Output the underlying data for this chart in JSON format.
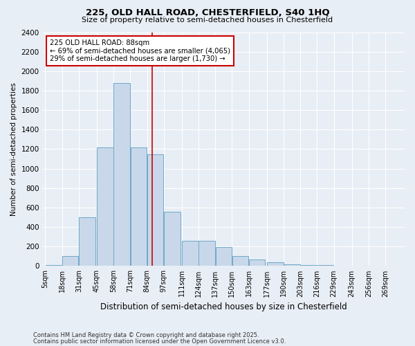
{
  "title1": "225, OLD HALL ROAD, CHESTERFIELD, S40 1HQ",
  "title2": "Size of property relative to semi-detached houses in Chesterfield",
  "xlabel": "Distribution of semi-detached houses by size in Chesterfield",
  "ylabel": "Number of semi-detached properties",
  "annotation_title": "225 OLD HALL ROAD: 88sqm",
  "annotation_line1": "← 69% of semi-detached houses are smaller (4,065)",
  "annotation_line2": "29% of semi-detached houses are larger (1,730) →",
  "footnote1": "Contains HM Land Registry data © Crown copyright and database right 2025.",
  "footnote2": "Contains public sector information licensed under the Open Government Licence v3.0.",
  "property_size": 88,
  "bar_color": "#c8d8ea",
  "bar_edge_color": "#6fa8c8",
  "vline_color": "#cc0000",
  "vline_x": 88,
  "categories": [
    "5sqm",
    "18sqm",
    "31sqm",
    "45sqm",
    "58sqm",
    "71sqm",
    "84sqm",
    "97sqm",
    "111sqm",
    "124sqm",
    "137sqm",
    "150sqm",
    "163sqm",
    "177sqm",
    "190sqm",
    "203sqm",
    "216sqm",
    "229sqm",
    "243sqm",
    "256sqm",
    "269sqm"
  ],
  "bin_starts": [
    5,
    18,
    31,
    45,
    58,
    71,
    84,
    97,
    111,
    124,
    137,
    150,
    163,
    177,
    190,
    203,
    216,
    229,
    243,
    256,
    269
  ],
  "bin_width": 13,
  "values": [
    10,
    100,
    500,
    1220,
    1880,
    1220,
    1150,
    560,
    260,
    260,
    195,
    100,
    65,
    40,
    20,
    12,
    8,
    5,
    5,
    5,
    5
  ],
  "ylim": [
    0,
    2400
  ],
  "yticks": [
    0,
    200,
    400,
    600,
    800,
    1000,
    1200,
    1400,
    1600,
    1800,
    2000,
    2200,
    2400
  ],
  "background_color": "#e8eef5",
  "grid_color": "#ffffff",
  "annotation_box_color": "#ffffff",
  "annotation_box_edge": "#cc0000"
}
